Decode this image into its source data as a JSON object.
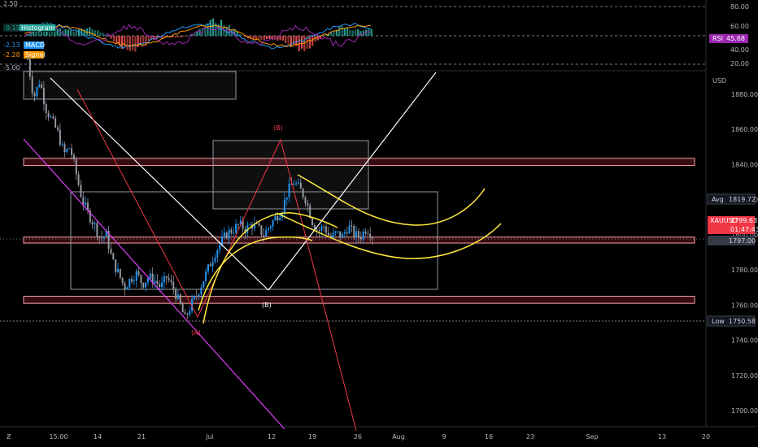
{
  "chart_data": {
    "type": "candlestick",
    "symbol": "XAUUSD",
    "currency": "USD",
    "last_price": "1799.63",
    "countdown": "01:47:43",
    "price_line": "1797.00",
    "avg": {
      "label": "Avg",
      "value": "1819.72"
    },
    "low": {
      "label": "Low",
      "value": "1750.58"
    },
    "price_axis": {
      "ticks": [
        1880,
        1860,
        1840,
        1820,
        1800,
        1780,
        1760,
        1740,
        1720,
        1700
      ],
      "ylim": [
        1692,
        1892
      ]
    },
    "time_axis": {
      "ticks": [
        "15:00",
        "14",
        "21",
        "Jul",
        "12",
        "19",
        "26",
        "Aug",
        "9",
        "16",
        "23",
        "Sep",
        "13",
        "20"
      ]
    },
    "indicators": {
      "histogram": {
        "label": "Histogram",
        "value": "0.15",
        "color": "#26a69a"
      },
      "macd": {
        "label": "MACD",
        "value": "-2.13",
        "color": "#2196f3"
      },
      "signal": {
        "label": "Signal",
        "value": "-2.28",
        "color": "#ff9800"
      },
      "rsi": {
        "label": "RSI",
        "value": "45.68",
        "color": "#9c27b0"
      },
      "scale_left": [
        "2.50",
        "-5.00"
      ],
      "scale_right": [
        "80.00",
        "60.00",
        "40.00",
        "20.00"
      ]
    },
    "annotations": {
      "wave_A": "(A)",
      "wave_B_red": "(B)",
      "wave_B_white": "(B)"
    },
    "zones": [
      {
        "from": 1839.5,
        "to": 1843.5
      },
      {
        "from": 1795.3,
        "to": 1798.7
      },
      {
        "from": 1761,
        "to": 1765
      }
    ],
    "price_path": [
      1900,
      1878,
      1888,
      1872,
      1865,
      1858,
      1846,
      1850,
      1835,
      1820,
      1812,
      1806,
      1798,
      1800,
      1785,
      1778,
      1770,
      1775,
      1778,
      1772,
      1776,
      1774,
      1770,
      1776,
      1770,
      1762,
      1752,
      1760,
      1766,
      1774,
      1782,
      1790,
      1796,
      1801,
      1803,
      1806,
      1803,
      1806,
      1804,
      1800,
      1805,
      1810,
      1814,
      1825,
      1830,
      1826,
      1820,
      1808,
      1802,
      1805,
      1798,
      1801,
      1799,
      1805,
      1800,
      1799,
      1804,
      1799.6
    ]
  }
}
